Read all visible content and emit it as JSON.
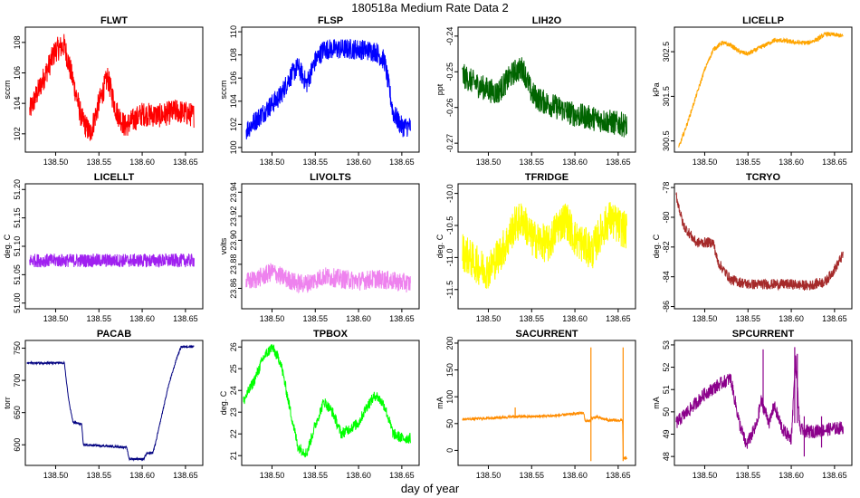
{
  "figure": {
    "title": "180518a   Medium Rate Data 2",
    "xlabel": "day of year"
  },
  "chart_data": [
    {
      "type": "line",
      "title": "FLWT",
      "ylabel": "sccm",
      "color": "#ff0000",
      "xlim": [
        138.465,
        138.67
      ],
      "xticks": [
        138.5,
        138.55,
        138.6,
        138.65
      ],
      "xtick_labels": [
        "138.50",
        "138.55",
        "138.60",
        "138.65"
      ],
      "ylim": [
        100.8,
        109.0
      ],
      "yticks": [
        102,
        104,
        106,
        108
      ],
      "ytick_labels": [
        "102",
        "104",
        "106",
        "108"
      ],
      "noise": 0.8,
      "x": [
        138.47,
        138.485,
        138.5,
        138.51,
        138.52,
        138.53,
        138.54,
        138.55,
        138.56,
        138.57,
        138.58,
        138.6,
        138.62,
        138.64,
        138.66
      ],
      "y": [
        103.5,
        105.5,
        107.5,
        107.8,
        105.5,
        103,
        102,
        104,
        105.7,
        103.5,
        102.5,
        103.3,
        103.2,
        103.5,
        103.2
      ]
    },
    {
      "type": "line",
      "title": "FLSP",
      "ylabel": "sccm",
      "color": "#0000ff",
      "xlim": [
        138.465,
        138.67
      ],
      "xticks": [
        138.5,
        138.55,
        138.6,
        138.65
      ],
      "xtick_labels": [
        "138.50",
        "138.55",
        "138.60",
        "138.65"
      ],
      "ylim": [
        99.6,
        110.4
      ],
      "yticks": [
        100,
        102,
        104,
        106,
        108,
        110
      ],
      "ytick_labels": [
        "100",
        "102",
        "104",
        "106",
        "108",
        "110"
      ],
      "noise": 0.9,
      "x": [
        138.47,
        138.49,
        138.51,
        138.52,
        138.53,
        138.54,
        138.55,
        138.56,
        138.58,
        138.6,
        138.62,
        138.63,
        138.64,
        138.65,
        138.66
      ],
      "y": [
        101.5,
        103,
        104.5,
        106,
        107,
        105.5,
        107.5,
        108.5,
        108.5,
        108.5,
        108.3,
        107.5,
        103,
        101.8,
        101.8
      ]
    },
    {
      "type": "line",
      "title": "LIH2O",
      "ylabel": "ppt",
      "color": "#006400",
      "xlim": [
        138.465,
        138.67
      ],
      "xticks": [
        138.5,
        138.55,
        138.6,
        138.65
      ],
      "xtick_labels": [
        "138.50",
        "138.55",
        "138.60",
        "138.65"
      ],
      "ylim": [
        -0.2725,
        -0.2375
      ],
      "yticks": [
        -0.27,
        -0.26,
        -0.25,
        -0.24
      ],
      "ytick_labels": [
        "-0.27",
        "-0.26",
        "-0.25",
        "-0.24"
      ],
      "noise": 0.0035,
      "x": [
        138.47,
        138.49,
        138.51,
        138.52,
        138.53,
        138.54,
        138.55,
        138.56,
        138.58,
        138.6,
        138.62,
        138.64,
        138.66
      ],
      "y": [
        -0.251,
        -0.254,
        -0.256,
        -0.253,
        -0.25,
        -0.249,
        -0.256,
        -0.258,
        -0.26,
        -0.262,
        -0.263,
        -0.264,
        -0.265
      ]
    },
    {
      "type": "line",
      "title": "LICELLP",
      "ylabel": "kPa",
      "color": "#ffa500",
      "xlim": [
        138.465,
        138.67
      ],
      "xticks": [
        138.5,
        138.55,
        138.6,
        138.65
      ],
      "xtick_labels": [
        "138.50",
        "138.55",
        "138.60",
        "138.65"
      ],
      "ylim": [
        300.25,
        303.05
      ],
      "yticks": [
        300.5,
        301.5,
        302.5
      ],
      "ytick_labels": [
        "300.5",
        "301.5",
        "302.5"
      ],
      "noise": 0.05,
      "x": [
        138.47,
        138.48,
        138.49,
        138.5,
        138.51,
        138.52,
        138.53,
        138.54,
        138.55,
        138.56,
        138.57,
        138.58,
        138.59,
        138.6,
        138.61,
        138.62,
        138.63,
        138.64,
        138.65,
        138.66
      ],
      "y": [
        300.35,
        300.9,
        301.5,
        302.1,
        302.55,
        302.7,
        302.65,
        302.5,
        302.45,
        302.55,
        302.65,
        302.75,
        302.75,
        302.72,
        302.7,
        302.7,
        302.78,
        302.9,
        302.88,
        302.85
      ]
    },
    {
      "type": "line",
      "title": "LICELLT",
      "ylabel": "deg. C",
      "color": "#a020f0",
      "xlim": [
        138.465,
        138.67
      ],
      "xticks": [
        138.5,
        138.55,
        138.6,
        138.65
      ],
      "xtick_labels": [
        "138.50",
        "138.55",
        "138.60",
        "138.65"
      ],
      "ylim": [
        50.99,
        51.21
      ],
      "yticks": [
        51.0,
        51.05,
        51.1,
        51.15,
        51.2
      ],
      "ytick_labels": [
        "51.00",
        "51.05",
        "51.10",
        "51.15",
        "51.20"
      ],
      "noise": 0.012,
      "x": [
        138.47,
        138.56,
        138.66
      ],
      "y": [
        51.075,
        51.075,
        51.075
      ]
    },
    {
      "type": "line",
      "title": "LIVOLTS",
      "ylabel": "volts",
      "color": "#ee82ee",
      "xlim": [
        138.465,
        138.67
      ],
      "xticks": [
        138.5,
        138.55,
        138.6,
        138.65
      ],
      "xtick_labels": [
        "138.50",
        "138.55",
        "138.60",
        "138.65"
      ],
      "ylim": [
        23.843,
        23.947
      ],
      "yticks": [
        23.86,
        23.88,
        23.9,
        23.92,
        23.94
      ],
      "ytick_labels": [
        "23.86",
        "23.88",
        "23.90",
        "23.92",
        "23.94"
      ],
      "noise": 0.008,
      "x": [
        138.47,
        138.49,
        138.5,
        138.51,
        138.53,
        138.54,
        138.56,
        138.58,
        138.6,
        138.62,
        138.64,
        138.66
      ],
      "y": [
        23.865,
        23.87,
        23.874,
        23.87,
        23.864,
        23.864,
        23.87,
        23.868,
        23.866,
        23.868,
        23.866,
        23.864
      ]
    },
    {
      "type": "line",
      "title": "TFRIDGE",
      "ylabel": "deg. C",
      "color": "#ffff00",
      "xlim": [
        138.465,
        138.67
      ],
      "xticks": [
        138.5,
        138.55,
        138.6,
        138.65
      ],
      "xtick_labels": [
        "138.50",
        "138.55",
        "138.60",
        "138.65"
      ],
      "ylim": [
        -11.8,
        -9.85
      ],
      "yticks": [
        -11.5,
        -11.0,
        -10.5,
        -10.0
      ],
      "ytick_labels": [
        "-11.5",
        "-11.0",
        "-10.5",
        "-10.0"
      ],
      "noise": 0.3,
      "x": [
        138.47,
        138.49,
        138.5,
        138.51,
        138.52,
        138.53,
        138.54,
        138.55,
        138.57,
        138.58,
        138.59,
        138.6,
        138.62,
        138.63,
        138.64,
        138.66
      ],
      "y": [
        -10.9,
        -11.15,
        -11.2,
        -11.0,
        -10.8,
        -10.5,
        -10.4,
        -10.7,
        -10.8,
        -10.5,
        -10.4,
        -10.7,
        -10.9,
        -10.6,
        -10.4,
        -10.6
      ]
    },
    {
      "type": "line",
      "title": "TCRYO",
      "ylabel": "deg. C",
      "color": "#a52a2a",
      "xlim": [
        138.465,
        138.67
      ],
      "xticks": [
        138.5,
        138.55,
        138.6,
        138.65
      ],
      "xtick_labels": [
        "138.50",
        "138.55",
        "138.60",
        "138.65"
      ],
      "ylim": [
        -86.15,
        -77.75
      ],
      "yticks": [
        -86,
        -84,
        -82,
        -80,
        -78
      ],
      "ytick_labels": [
        "-86",
        "-84",
        "-82",
        "-80",
        "-78"
      ],
      "noise": 0.35,
      "x": [
        138.467,
        138.475,
        138.49,
        138.51,
        138.515,
        138.52,
        138.53,
        138.55,
        138.57,
        138.6,
        138.62,
        138.64,
        138.65,
        138.66
      ],
      "y": [
        -78.5,
        -80.5,
        -81.7,
        -81.7,
        -83.0,
        -83.4,
        -84.2,
        -84.5,
        -84.5,
        -84.5,
        -84.6,
        -84.3,
        -83.5,
        -82.5
      ]
    },
    {
      "type": "line",
      "title": "PACAB",
      "ylabel": "torr",
      "color": "#000080",
      "xlim": [
        138.465,
        138.67
      ],
      "xticks": [
        138.5,
        138.55,
        138.6,
        138.65
      ],
      "xtick_labels": [
        "138.50",
        "138.55",
        "138.60",
        "138.65"
      ],
      "ylim": [
        568,
        762
      ],
      "yticks": [
        600,
        650,
        700,
        750
      ],
      "ytick_labels": [
        "600",
        "650",
        "700",
        "750"
      ],
      "noise": 1.5,
      "x": [
        138.467,
        138.51,
        138.515,
        138.52,
        138.53,
        138.532,
        138.56,
        138.57,
        138.582,
        138.585,
        138.602,
        138.605,
        138.612,
        138.615,
        138.63,
        138.64,
        138.645,
        138.66
      ],
      "y": [
        727,
        727,
        670,
        635,
        632,
        600,
        598,
        597,
        596,
        578,
        578,
        587,
        587,
        600,
        690,
        735,
        752,
        753
      ]
    },
    {
      "type": "line",
      "title": "TPBOX",
      "ylabel": "deg. C",
      "color": "#00ff00",
      "xlim": [
        138.465,
        138.67
      ],
      "xticks": [
        138.5,
        138.55,
        138.6,
        138.65
      ],
      "xtick_labels": [
        "138.50",
        "138.55",
        "138.60",
        "138.65"
      ],
      "ylim": [
        20.55,
        26.3
      ],
      "yticks": [
        21,
        22,
        23,
        24,
        25,
        26
      ],
      "ytick_labels": [
        "21",
        "22",
        "23",
        "24",
        "25",
        "26"
      ],
      "noise": 0.25,
      "x": [
        138.467,
        138.48,
        138.49,
        138.5,
        138.51,
        138.52,
        138.53,
        138.54,
        138.55,
        138.56,
        138.57,
        138.58,
        138.6,
        138.61,
        138.62,
        138.63,
        138.64,
        138.65,
        138.66
      ],
      "y": [
        23.5,
        24.5,
        25.5,
        26.0,
        25.3,
        23.3,
        21.4,
        21.1,
        22.4,
        23.5,
        23.0,
        22.0,
        22.5,
        23.3,
        23.8,
        23.3,
        22.0,
        21.8,
        21.8
      ]
    },
    {
      "type": "line",
      "title": "SACURRENT",
      "ylabel": "mA",
      "color": "#ff8c00",
      "xlim": [
        138.465,
        138.67
      ],
      "xticks": [
        138.5,
        138.55,
        138.6,
        138.65
      ],
      "xtick_labels": [
        "138.50",
        "138.55",
        "138.60",
        "138.65"
      ],
      "ylim": [
        -28,
        205
      ],
      "yticks": [
        0,
        50,
        100,
        150,
        200
      ],
      "ytick_labels": [
        "0",
        "50",
        "100",
        "150",
        "200"
      ],
      "noise": 2.5,
      "x": [
        138.47,
        138.5,
        138.53,
        138.55,
        138.58,
        138.61,
        138.612,
        138.618,
        138.619,
        138.625,
        138.64,
        138.655,
        138.656,
        138.66
      ],
      "y": [
        58,
        60,
        63,
        63,
        65,
        70,
        55,
        55,
        60,
        62,
        56,
        56,
        -15,
        -15
      ],
      "spikes": [
        {
          "x": 138.531,
          "y1": 60,
          "y2": 80
        },
        {
          "x": 138.6185,
          "y1": -20,
          "y2": 192
        },
        {
          "x": 138.6557,
          "y1": -20,
          "y2": 192
        }
      ]
    },
    {
      "type": "line",
      "title": "SPCURRENT",
      "ylabel": "mA",
      "color": "#8b008b",
      "xlim": [
        138.465,
        138.67
      ],
      "xticks": [
        138.5,
        138.55,
        138.6,
        138.65
      ],
      "xtick_labels": [
        "138.50",
        "138.55",
        "138.60",
        "138.65"
      ],
      "ylim": [
        47.6,
        53.2
      ],
      "yticks": [
        48,
        49,
        50,
        51,
        52,
        53
      ],
      "ytick_labels": [
        "48",
        "49",
        "50",
        "51",
        "52",
        "53"
      ],
      "noise": 0.3,
      "x": [
        138.467,
        138.48,
        138.5,
        138.52,
        138.53,
        138.54,
        138.548,
        138.56,
        138.565,
        138.575,
        138.58,
        138.59,
        138.6,
        138.605,
        138.61,
        138.62,
        138.64,
        138.66
      ],
      "y": [
        49.5,
        50.0,
        50.8,
        51.3,
        51.5,
        49.5,
        48.5,
        49.4,
        50.5,
        49.5,
        50.3,
        49.2,
        48.8,
        52.4,
        49.2,
        49.1,
        49.2,
        49.3
      ],
      "spikes": [
        {
          "x": 138.5675,
          "y1": 50,
          "y2": 52.8
        },
        {
          "x": 138.604,
          "y1": 49.5,
          "y2": 52.9
        },
        {
          "x": 138.607,
          "y1": 49.5,
          "y2": 52.6
        },
        {
          "x": 138.615,
          "y1": 48.0,
          "y2": 49.8
        },
        {
          "x": 138.635,
          "y1": 48.4,
          "y2": 49.8
        }
      ]
    }
  ]
}
